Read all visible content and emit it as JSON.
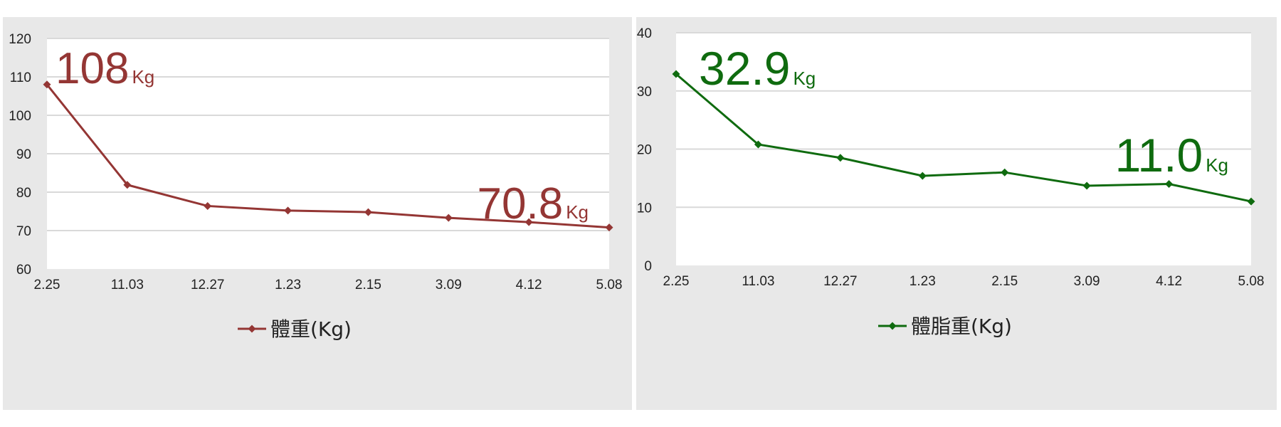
{
  "chart_data": [
    {
      "type": "line",
      "categories": [
        "2.25",
        "11.03",
        "12.27",
        "1.23",
        "2.15",
        "3.09",
        "4.12",
        "5.08"
      ],
      "series": [
        {
          "name": "體重(Kg)",
          "values": [
            108,
            81.9,
            76.4,
            75.2,
            74.8,
            73.3,
            72.2,
            70.8
          ],
          "color": "#943634"
        }
      ],
      "ylim": [
        60,
        120
      ],
      "yticks": [
        "60",
        "70",
        "80",
        "90",
        "100",
        "110",
        "120"
      ],
      "grid": true,
      "legend": "bottom",
      "annotations": [
        {
          "value": "108",
          "unit": "Kg"
        },
        {
          "value": "70.8",
          "unit": "Kg"
        }
      ]
    },
    {
      "type": "line",
      "categories": [
        "2.25",
        "11.03",
        "12.27",
        "1.23",
        "2.15",
        "3.09",
        "4.12",
        "5.08"
      ],
      "series": [
        {
          "name": "體脂重(Kg)",
          "values": [
            32.9,
            20.8,
            18.5,
            15.4,
            16.0,
            13.7,
            14.0,
            11.0
          ],
          "color": "#0f6b0f"
        }
      ],
      "ylim": [
        0,
        40
      ],
      "yticks": [
        "0",
        "10",
        "20",
        "30",
        "40"
      ],
      "grid": true,
      "legend": "bottom",
      "annotations": [
        {
          "value": "32.9",
          "unit": "Kg"
        },
        {
          "value": "11.0",
          "unit": "Kg"
        }
      ]
    }
  ]
}
